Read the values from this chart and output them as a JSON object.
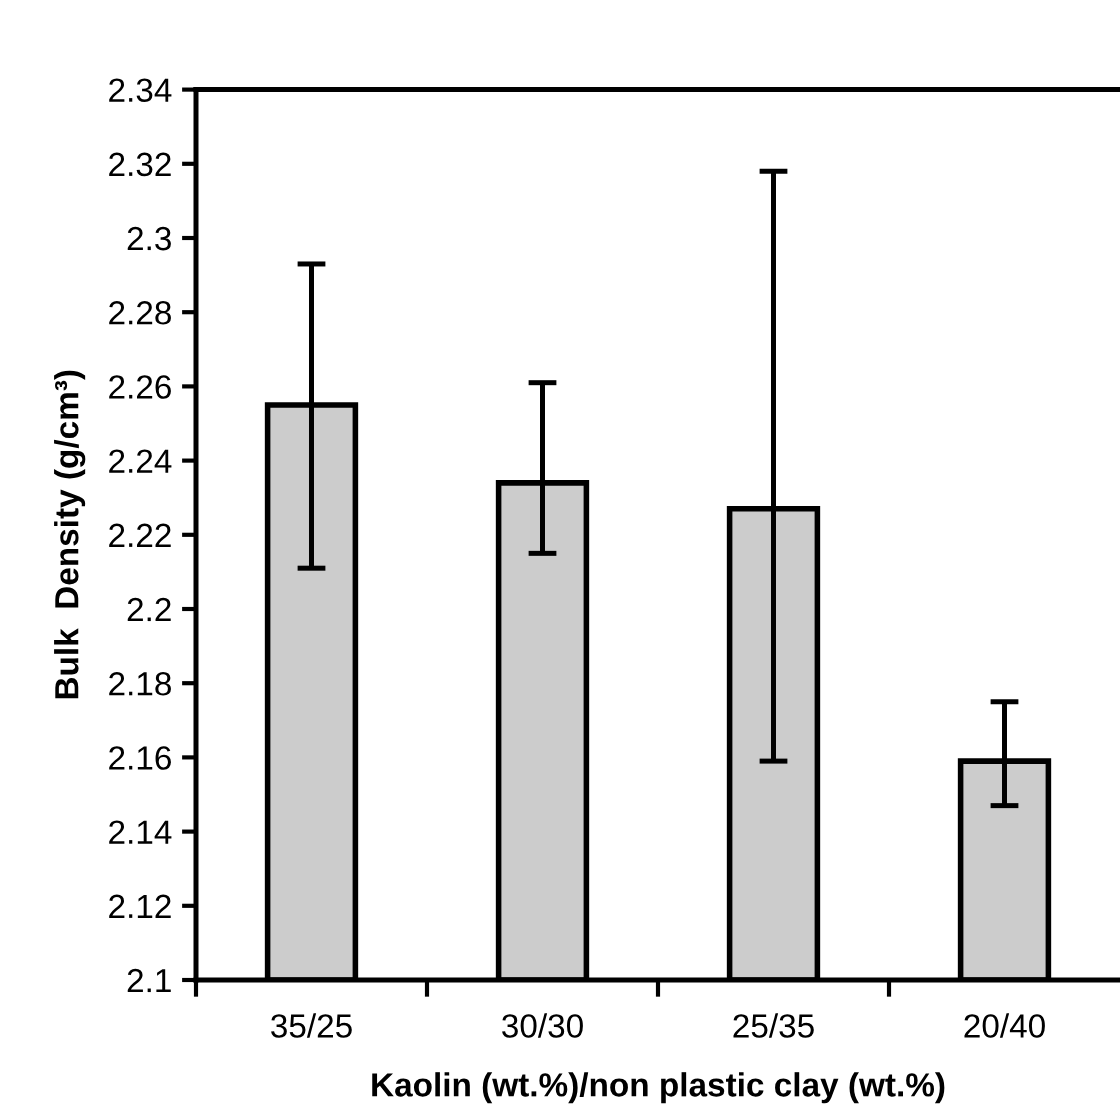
{
  "chart_data": {
    "type": "bar",
    "xlabel": "Kaolin (wt.%)/non plastic clay (wt.%)",
    "ylabel": "Bulk  Density (g/cm³)",
    "categories": [
      "35/25",
      "30/30",
      "25/35",
      "20/40"
    ],
    "values": [
      2.255,
      2.234,
      2.227,
      2.159
    ],
    "errors": [
      [
        2.211,
        2.293
      ],
      [
        2.215,
        2.261
      ],
      [
        2.159,
        2.318
      ],
      [
        2.147,
        2.175
      ]
    ],
    "color": "#cccccc",
    "ylim": [
      2.1,
      2.34
    ],
    "yticks": [
      2.1,
      2.12,
      2.14,
      2.16,
      2.18,
      2.2,
      2.22,
      2.24,
      2.26,
      2.28,
      2.3,
      2.32,
      2.34
    ],
    "grid": false
  }
}
